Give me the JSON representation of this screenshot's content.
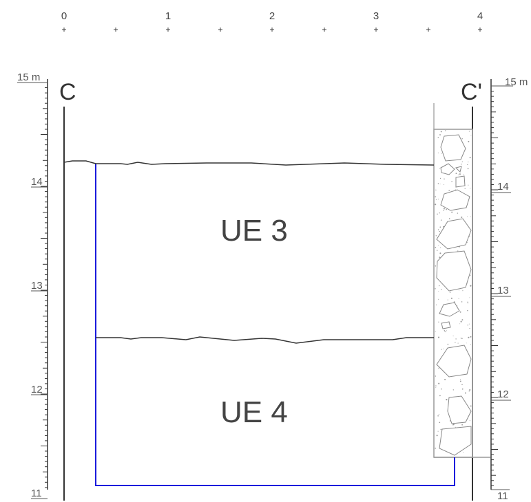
{
  "top_scale": {
    "labels": [
      "0",
      "1",
      "2",
      "3",
      "4"
    ]
  },
  "section": {
    "left_label": "C",
    "right_label": "C'"
  },
  "left_scale": {
    "top_label": "15 m",
    "labels": [
      "14",
      "13",
      "12",
      "11"
    ]
  },
  "right_scale": {
    "top_label": "15 m",
    "labels": [
      "14",
      "13",
      "12",
      "11"
    ]
  },
  "units": {
    "upper": "UE 3",
    "lower": "UE 4"
  },
  "colors": {
    "line": "#333333",
    "excavation": "#1a1adc",
    "wall": "#999999"
  }
}
